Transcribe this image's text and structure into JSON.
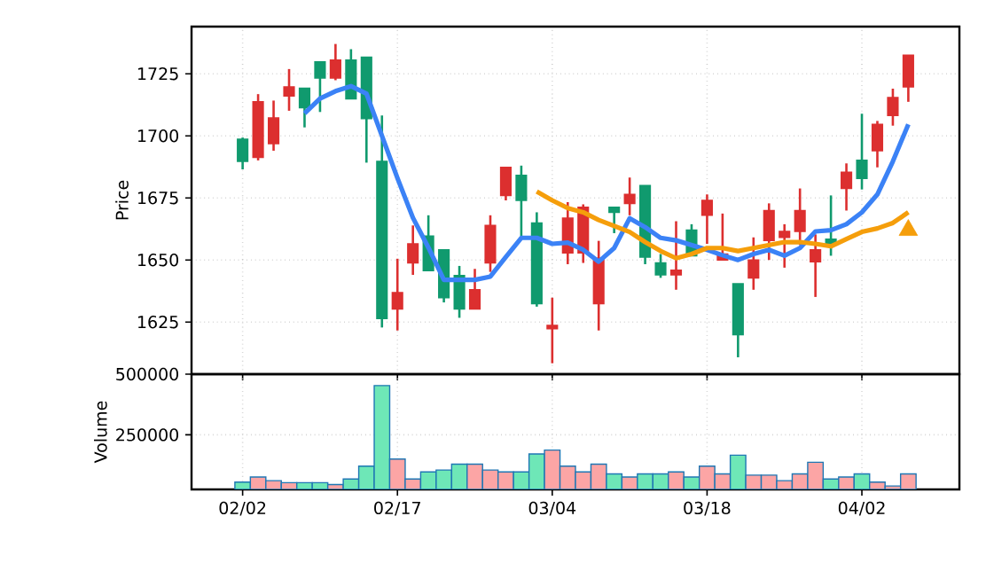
{
  "chart_data": [
    {
      "type": "candlestick",
      "ylabel": "Price",
      "categories": [
        null,
        null,
        null,
        null,
        null,
        null,
        null,
        null,
        null,
        null,
        null,
        null,
        null,
        null,
        null,
        null,
        null,
        null,
        null,
        null,
        null,
        null,
        null,
        null,
        null,
        null,
        null,
        null,
        null,
        null,
        null,
        null,
        null,
        null,
        null,
        null,
        null,
        null,
        null,
        null,
        null,
        null,
        null,
        null
      ],
      "ohlc": [
        [
          1698.6,
          1699.3,
          1686.5,
          1689.7
        ],
        [
          1691.3,
          1716.8,
          1690.1,
          1713.7
        ],
        [
          1696.9,
          1714.2,
          1694.0,
          1707.2
        ],
        [
          1716.1,
          1726.9,
          1710.1,
          1719.7
        ],
        [
          1719.2,
          1719.2,
          1703.4,
          1711.3
        ],
        [
          1729.8,
          1729.8,
          1709.6,
          1723.3
        ],
        [
          1723.3,
          1737.0,
          1722.4,
          1730.5
        ],
        [
          1730.5,
          1734.9,
          1714.9,
          1714.9
        ],
        [
          1731.7,
          1731.7,
          1689.2,
          1707.0
        ],
        [
          1689.7,
          1708.2,
          1622.8,
          1626.4
        ],
        [
          1630.3,
          1650.5,
          1621.6,
          1636.8
        ],
        [
          1648.8,
          1663.9,
          1644.0,
          1656.5
        ],
        [
          1659.6,
          1668.0,
          1645.7,
          1645.7
        ],
        [
          1654.1,
          1654.1,
          1632.9,
          1634.8
        ],
        [
          1643.7,
          1647.6,
          1626.7,
          1630.3
        ],
        [
          1630.3,
          1646.4,
          1630.3,
          1638.0
        ],
        [
          1648.8,
          1668.0,
          1645.2,
          1663.9
        ],
        [
          1676.0,
          1687.3,
          1674.0,
          1687.3
        ],
        [
          1684.1,
          1688.0,
          1659.6,
          1674.0
        ],
        [
          1664.9,
          1669.2,
          1631.2,
          1632.4
        ],
        [
          1622.3,
          1634.8,
          1608.4,
          1623.6
        ],
        [
          1652.9,
          1673.3,
          1648.3,
          1666.8
        ],
        [
          1652.9,
          1672.4,
          1648.8,
          1671.2
        ],
        [
          1632.4,
          1657.7,
          1621.6,
          1650.7
        ],
        [
          1671.2,
          1671.2,
          1660.8,
          1669.2
        ],
        [
          1672.8,
          1683.2,
          1668.0,
          1676.4
        ],
        [
          1680.0,
          1680.0,
          1648.3,
          1651.2
        ],
        [
          1648.8,
          1652.4,
          1642.8,
          1644.0
        ],
        [
          1644.0,
          1665.6,
          1638.0,
          1645.9
        ],
        [
          1662.0,
          1664.4,
          1651.7,
          1651.7
        ],
        [
          1668.0,
          1676.4,
          1656.5,
          1674.0
        ],
        [
          1650.0,
          1668.7,
          1650.0,
          1652.4
        ],
        [
          1640.4,
          1640.4,
          1610.8,
          1619.9
        ],
        [
          1642.8,
          1659.1,
          1638.0,
          1650.0
        ],
        [
          1657.9,
          1672.8,
          1650.0,
          1669.9
        ],
        [
          1659.1,
          1664.4,
          1646.9,
          1661.5
        ],
        [
          1661.5,
          1678.8,
          1656.0,
          1669.9
        ],
        [
          1649.3,
          1660.3,
          1635.1,
          1654.1
        ],
        [
          1658.4,
          1676.0,
          1651.7,
          1656.5
        ],
        [
          1678.8,
          1688.9,
          1669.9,
          1685.3
        ],
        [
          1690.1,
          1708.9,
          1678.4,
          1682.9
        ],
        [
          1694.0,
          1706.0,
          1687.3,
          1704.6
        ],
        [
          1708.2,
          1719.0,
          1704.1,
          1715.4
        ],
        [
          1719.7,
          1732.5,
          1713.7,
          1732.5
        ]
      ],
      "colors": [
        "#109a6e",
        "#dc2f2f",
        "#dc2f2f",
        "#dc2f2f",
        "#109a6e",
        "#109a6e",
        "#dc2f2f",
        "#109a6e",
        "#109a6e",
        "#109a6e",
        "#dc2f2f",
        "#dc2f2f",
        "#109a6e",
        "#109a6e",
        "#109a6e",
        "#dc2f2f",
        "#dc2f2f",
        "#dc2f2f",
        "#109a6e",
        "#109a6e",
        "#dc2f2f",
        "#dc2f2f",
        "#dc2f2f",
        "#dc2f2f",
        "#109a6e",
        "#dc2f2f",
        "#109a6e",
        "#109a6e",
        "#dc2f2f",
        "#109a6e",
        "#dc2f2f",
        "#dc2f2f",
        "#109a6e",
        "#dc2f2f",
        "#dc2f2f",
        "#dc2f2f",
        "#dc2f2f",
        "#dc2f2f",
        "#109a6e",
        "#dc2f2f",
        "#109a6e",
        "#dc2f2f",
        "#dc2f2f",
        "#dc2f2f"
      ],
      "series": [
        {
          "type": "line",
          "color": "#3b82f6",
          "values": [
            null,
            null,
            null,
            null,
            1709,
            1715,
            1718,
            1720,
            1717,
            1700,
            1683,
            1667,
            1655,
            1642,
            1642,
            1642,
            1643.3,
            1651.2,
            1658.9,
            1658.9,
            1656.5,
            1657,
            1654.1,
            1649.3,
            1654.8,
            1666.8,
            1663.2,
            1658.9,
            1657.9,
            1656,
            1654.1,
            1651.9,
            1650,
            1652.4,
            1654.1,
            1651.7,
            1654.8,
            1661.5,
            1662,
            1664.4,
            1669.2,
            1676.4,
            1689.7,
            1704.6
          ]
        },
        {
          "type": "line",
          "color": "#f59e0b",
          "values": [
            null,
            null,
            null,
            null,
            null,
            null,
            null,
            null,
            null,
            null,
            null,
            null,
            null,
            null,
            null,
            null,
            null,
            null,
            null,
            1677.6,
            1674,
            1670.9,
            1669.2,
            1666.1,
            1663.7,
            1661.3,
            1657.2,
            1653.6,
            1650.7,
            1652.4,
            1654.8,
            1654.8,
            1653.6,
            1654.8,
            1656,
            1657.2,
            1657.2,
            1656.5,
            1655.5,
            1658.4,
            1661.3,
            1662.7,
            1664.9,
            1669.2
          ]
        },
        {
          "type": "scatter",
          "color": "#f59e0b",
          "marker": "triangle",
          "values": [
            null,
            null,
            null,
            null,
            null,
            null,
            null,
            null,
            null,
            null,
            null,
            null,
            null,
            null,
            null,
            null,
            null,
            null,
            null,
            null,
            null,
            null,
            null,
            null,
            null,
            null,
            null,
            null,
            null,
            null,
            null,
            null,
            null,
            null,
            null,
            null,
            null,
            null,
            null,
            null,
            null,
            null,
            null,
            1662
          ]
        }
      ],
      "ylim": [
        1604,
        1744
      ],
      "yticks": [
        1625,
        1650,
        1675,
        1700,
        1725
      ],
      "grid": true,
      "tick_labels": "y"
    },
    {
      "type": "bar",
      "ylabel": "Volume",
      "categories": [
        "02/02",
        null,
        null,
        null,
        null,
        null,
        null,
        null,
        null,
        null,
        "02/17",
        null,
        null,
        null,
        null,
        null,
        null,
        null,
        null,
        null,
        "03/04",
        null,
        null,
        null,
        null,
        null,
        null,
        null,
        null,
        null,
        "03/18",
        null,
        null,
        null,
        null,
        null,
        null,
        null,
        null,
        null,
        "04/02",
        null,
        null,
        null
      ],
      "values": [
        55000,
        76000,
        61000,
        53000,
        53000,
        53000,
        45000,
        68000,
        121000,
        453000,
        150000,
        68000,
        97000,
        105000,
        129000,
        129000,
        105000,
        97000,
        97000,
        171000,
        187000,
        121000,
        97000,
        129000,
        89000,
        76000,
        89000,
        89000,
        97000,
        76000,
        121000,
        89000,
        166000,
        84000,
        84000,
        61000,
        89000,
        137000,
        68000,
        76000,
        89000,
        55000,
        39000,
        89000
      ],
      "colors": [
        "#6ee7b7",
        "#fca5a5",
        "#fca5a5",
        "#fca5a5",
        "#6ee7b7",
        "#6ee7b7",
        "#fca5a5",
        "#6ee7b7",
        "#6ee7b7",
        "#6ee7b7",
        "#fca5a5",
        "#fca5a5",
        "#6ee7b7",
        "#6ee7b7",
        "#6ee7b7",
        "#fca5a5",
        "#fca5a5",
        "#fca5a5",
        "#6ee7b7",
        "#6ee7b7",
        "#fca5a5",
        "#fca5a5",
        "#fca5a5",
        "#fca5a5",
        "#6ee7b7",
        "#fca5a5",
        "#6ee7b7",
        "#6ee7b7",
        "#fca5a5",
        "#6ee7b7",
        "#fca5a5",
        "#fca5a5",
        "#6ee7b7",
        "#fca5a5",
        "#fca5a5",
        "#fca5a5",
        "#fca5a5",
        "#fca5a5",
        "#6ee7b7",
        "#fca5a5",
        "#6ee7b7",
        "#fca5a5",
        "#fca5a5",
        "#fca5a5"
      ],
      "ylim": [
        25000,
        500000
      ],
      "yticks": [
        250000,
        500000
      ],
      "grid": true
    }
  ]
}
